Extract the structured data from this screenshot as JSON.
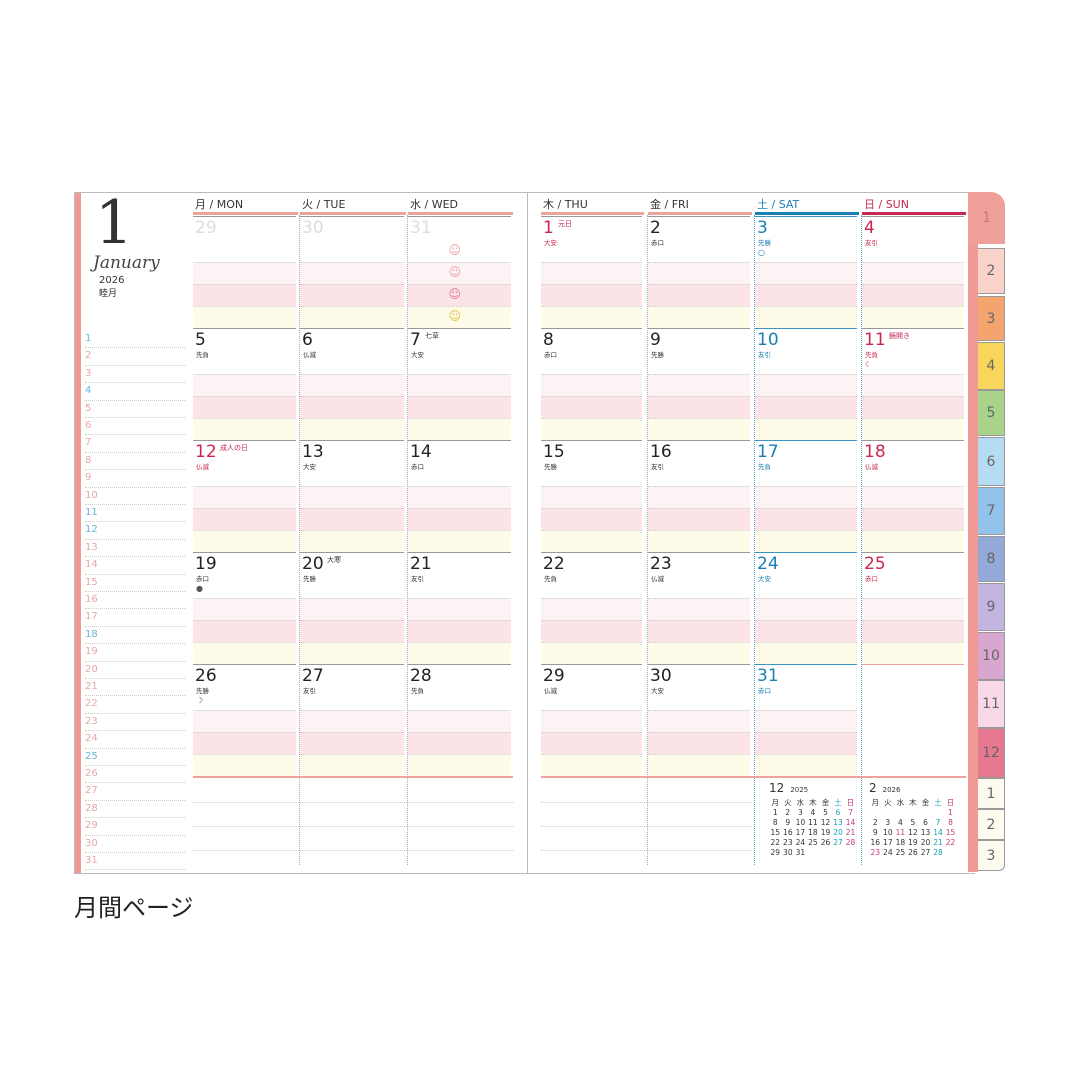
{
  "header": {
    "month_number": "1",
    "month_en": "January",
    "year": "2026",
    "month_jp": "睦月"
  },
  "weekdays": [
    {
      "label": "月 / MON",
      "type": "wd"
    },
    {
      "label": "火 / TUE",
      "type": "wd"
    },
    {
      "label": "水 / WED",
      "type": "wd"
    },
    {
      "label": "木 / THU",
      "type": "wd"
    },
    {
      "label": "金 / FRI",
      "type": "wd"
    },
    {
      "label": "土 / SAT",
      "type": "sat"
    },
    {
      "label": "日 / SUN",
      "type": "sun"
    }
  ],
  "side_days": [
    {
      "n": "1",
      "c": "blue"
    },
    {
      "n": "2"
    },
    {
      "n": "3"
    },
    {
      "n": "4",
      "c": "blue"
    },
    {
      "n": "5"
    },
    {
      "n": "6"
    },
    {
      "n": "7"
    },
    {
      "n": "8"
    },
    {
      "n": "9"
    },
    {
      "n": "10"
    },
    {
      "n": "11",
      "c": "blue"
    },
    {
      "n": "12",
      "c": "blue"
    },
    {
      "n": "13"
    },
    {
      "n": "14"
    },
    {
      "n": "15"
    },
    {
      "n": "16"
    },
    {
      "n": "17"
    },
    {
      "n": "18",
      "c": "blue"
    },
    {
      "n": "19"
    },
    {
      "n": "20"
    },
    {
      "n": "21"
    },
    {
      "n": "22"
    },
    {
      "n": "23"
    },
    {
      "n": "24"
    },
    {
      "n": "25",
      "c": "blue"
    },
    {
      "n": "26"
    },
    {
      "n": "27"
    },
    {
      "n": "28"
    },
    {
      "n": "29"
    },
    {
      "n": "30"
    },
    {
      "n": "31"
    }
  ],
  "weeks": [
    [
      {
        "d": "29",
        "t": "prev"
      },
      {
        "d": "30",
        "t": "prev"
      },
      {
        "d": "31",
        "t": "prev",
        "smileys": [
          "smiley-icon",
          "smiley-icon",
          "smiley-icon",
          "smiley-icon"
        ]
      },
      {
        "d": "1",
        "note": "元日",
        "rk": "大安",
        "t": "red"
      },
      {
        "d": "2",
        "rk": "赤口"
      },
      {
        "d": "3",
        "rk": "先勝",
        "mark": "○",
        "t": "blue"
      },
      {
        "d": "4",
        "rk": "友引",
        "t": "red"
      }
    ],
    [
      {
        "d": "5",
        "rk": "先負"
      },
      {
        "d": "6",
        "rk": "仏滅"
      },
      {
        "d": "7",
        "note": "七草",
        "rk": "大安"
      },
      {
        "d": "8",
        "rk": "赤口"
      },
      {
        "d": "9",
        "rk": "先勝"
      },
      {
        "d": "10",
        "rk": "友引",
        "t": "blue"
      },
      {
        "d": "11",
        "note": "鏡開き",
        "rk": "先負",
        "mark": "☾",
        "t": "red"
      }
    ],
    [
      {
        "d": "12",
        "note": "成人の日",
        "rk": "仏滅",
        "t": "red"
      },
      {
        "d": "13",
        "rk": "大安"
      },
      {
        "d": "14",
        "rk": "赤口"
      },
      {
        "d": "15",
        "rk": "先勝"
      },
      {
        "d": "16",
        "rk": "友引"
      },
      {
        "d": "17",
        "rk": "先負",
        "t": "blue"
      },
      {
        "d": "18",
        "rk": "仏滅",
        "t": "red"
      }
    ],
    [
      {
        "d": "19",
        "rk": "赤口",
        "mark": "●"
      },
      {
        "d": "20",
        "note": "大寒",
        "rk": "先勝"
      },
      {
        "d": "21",
        "rk": "友引"
      },
      {
        "d": "22",
        "rk": "先負"
      },
      {
        "d": "23",
        "rk": "仏滅"
      },
      {
        "d": "24",
        "rk": "大安",
        "t": "blue"
      },
      {
        "d": "25",
        "rk": "赤口",
        "t": "red"
      }
    ],
    [
      {
        "d": "26",
        "rk": "先勝",
        "mark": "☽"
      },
      {
        "d": "27",
        "rk": "友引"
      },
      {
        "d": "28",
        "rk": "先負"
      },
      {
        "d": "29",
        "rk": "仏滅"
      },
      {
        "d": "30",
        "rk": "大安"
      },
      {
        "d": "31",
        "rk": "赤口",
        "t": "blue"
      },
      {
        "d": "",
        "t": "empty"
      }
    ]
  ],
  "mini_calendars": [
    {
      "month": "12",
      "year": "2025",
      "head": [
        "月",
        "火",
        "水",
        "木",
        "金",
        "土",
        "日"
      ],
      "rows": [
        [
          "1",
          "2",
          "3",
          "4",
          "5",
          "6",
          "7"
        ],
        [
          "8",
          "9",
          "10",
          "11",
          "12",
          "13",
          "14"
        ],
        [
          "15",
          "16",
          "17",
          "18",
          "19",
          "20",
          "21"
        ],
        [
          "22",
          "23",
          "24",
          "25",
          "26",
          "27",
          "28"
        ],
        [
          "29",
          "30",
          "31",
          "",
          "",
          "",
          ""
        ]
      ],
      "holidays": []
    },
    {
      "month": "2",
      "year": "2026",
      "head": [
        "月",
        "火",
        "水",
        "木",
        "金",
        "土",
        "日"
      ],
      "rows": [
        [
          "",
          "",
          "",
          "",
          "",
          "",
          "1"
        ],
        [
          "2",
          "3",
          "4",
          "5",
          "6",
          "7",
          "8"
        ],
        [
          "9",
          "10",
          "11",
          "12",
          "13",
          "14",
          "15"
        ],
        [
          "16",
          "17",
          "18",
          "19",
          "20",
          "21",
          "22"
        ],
        [
          "23",
          "24",
          "25",
          "26",
          "27",
          "28",
          ""
        ]
      ],
      "holidays": [
        "11",
        "23"
      ]
    }
  ],
  "tabs": [
    {
      "label": "1",
      "color": "#f0a09a"
    },
    {
      "label": "2",
      "color": "#f9d3ca"
    },
    {
      "label": "3",
      "color": "#f4a46e"
    },
    {
      "label": "4",
      "color": "#f8d65c"
    },
    {
      "label": "5",
      "color": "#a9d38a"
    },
    {
      "label": "6",
      "color": "#b5dcf2"
    },
    {
      "label": "7",
      "color": "#93c3ea"
    },
    {
      "label": "8",
      "color": "#93a9d8"
    },
    {
      "label": "9",
      "color": "#c4b4e0"
    },
    {
      "label": "10",
      "color": "#d9a6cf"
    },
    {
      "label": "11",
      "color": "#f9d9e9"
    },
    {
      "label": "12",
      "color": "#e7788f"
    },
    {
      "label": "1",
      "color": "#fdfaf0"
    },
    {
      "label": "2",
      "color": "#fdfaf0"
    },
    {
      "label": "3",
      "color": "#fdfaf0"
    }
  ],
  "caption": "月間ページ"
}
